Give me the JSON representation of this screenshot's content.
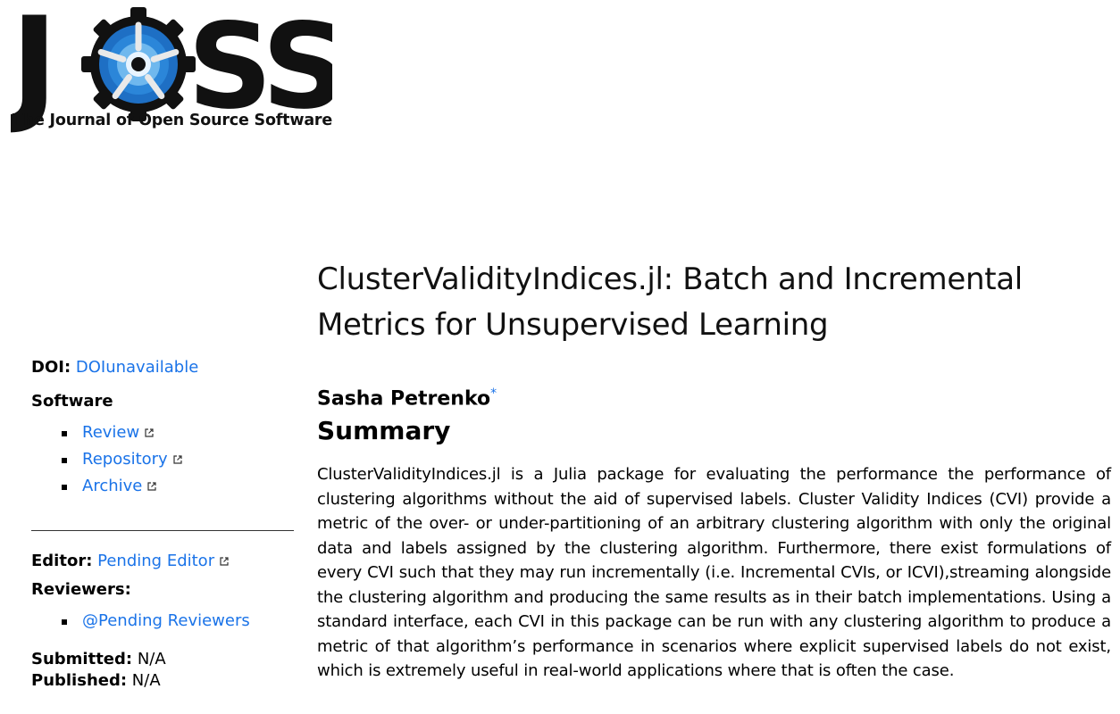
{
  "logo": {
    "letters_left": "J",
    "letters_right": "SS",
    "caption": "The Journal of Open Source Software"
  },
  "sidebar": {
    "doi_label": "DOI:",
    "doi_value": "DOIunavailable",
    "software_label": "Software",
    "software_links": [
      "Review",
      "Repository",
      "Archive"
    ],
    "editor_label": "Editor:",
    "editor_value": "Pending Editor",
    "reviewers_label": "Reviewers:",
    "reviewers": [
      "@Pending Reviewers"
    ],
    "submitted_label": "Submitted:",
    "submitted_value": "N/A",
    "published_label": "Published:",
    "published_value": "N/A"
  },
  "paper": {
    "title": "ClusterValidityIndices.jl: Batch and Incremental Metrics for Unsupervised Learning",
    "author": "Sasha Petrenko",
    "author_mark": "*",
    "section_heading": "Summary",
    "summary": "ClusterValidityIndices.jl is a Julia package for evaluating the performance the performance of clustering algorithms without the aid of supervised labels. Cluster Validity Indices (CVI) provide a metric of the over- or under-partitioning of an arbitrary clustering algorithm with only the original data and labels assigned by the clustering algorithm. Furthermore, there exist formulations of every CVI such that they may run incrementally (i.e. Incremental CVIs, or ICVI),streaming alongside the clustering algorithm and producing the same results as in their batch implementations. Using a standard interface, each CVI in this package can be run with any clustering algorithm to produce a metric of that algorithm’s performance in scenarios where explicit supervised labels do not exist, which is extremely useful in real-world applications where that is often the case."
  },
  "colors": {
    "link": "#1a73e8",
    "logo_blue": "#1e6fc4",
    "text": "#000000"
  }
}
